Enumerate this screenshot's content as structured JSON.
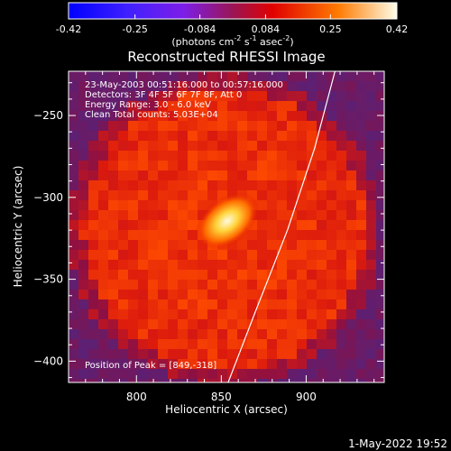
{
  "colorbar": {
    "ticks": [
      "-0.42",
      "-0.25",
      "-0.084",
      "0.084",
      "0.25",
      "0.42"
    ],
    "min": -0.42,
    "max": 0.42,
    "unit_label": "(photons cm",
    "unit_sup1": "-2",
    "unit_mid": " s",
    "unit_sup2": "-1",
    "unit_end": " asec",
    "unit_sup3": "-2",
    "unit_close": ")"
  },
  "chart_data": {
    "type": "heatmap",
    "title": "Reconstructed RHESSI Image",
    "xlabel": "Heliocentric X (arcsec)",
    "ylabel": "Heliocentric Y (arcsec)",
    "xlim": [
      760,
      946
    ],
    "ylim": [
      -413,
      -223
    ],
    "xticks": [
      800,
      850,
      900
    ],
    "yticks": [
      -250,
      -300,
      -350,
      -400
    ],
    "annotations": [
      "23-May-2003 00:51:16.000 to 00:57:16.000",
      "Detectors: 3F 4F 5F 6F 7F 8F, Att 0",
      "Energy Range: 3.0 - 6.0 keV",
      "Clean    Total counts: 5.03E+04"
    ],
    "peak_label": "Position of Peak = [849,-318]",
    "peak": [
      849,
      -318
    ],
    "limb_curve": [
      [
        854,
        -413
      ],
      [
        870,
        -370
      ],
      [
        889,
        -320
      ],
      [
        905,
        -270
      ],
      [
        917,
        -223
      ]
    ],
    "colormap": "rhessi-red-temperature",
    "background_color": "#5a2a8a",
    "source_center": [
      852,
      -320
    ],
    "source_extent_arcsec": 80,
    "peak_value": 0.42
  },
  "footer": {
    "timestamp": "1-May-2022 19:52"
  }
}
